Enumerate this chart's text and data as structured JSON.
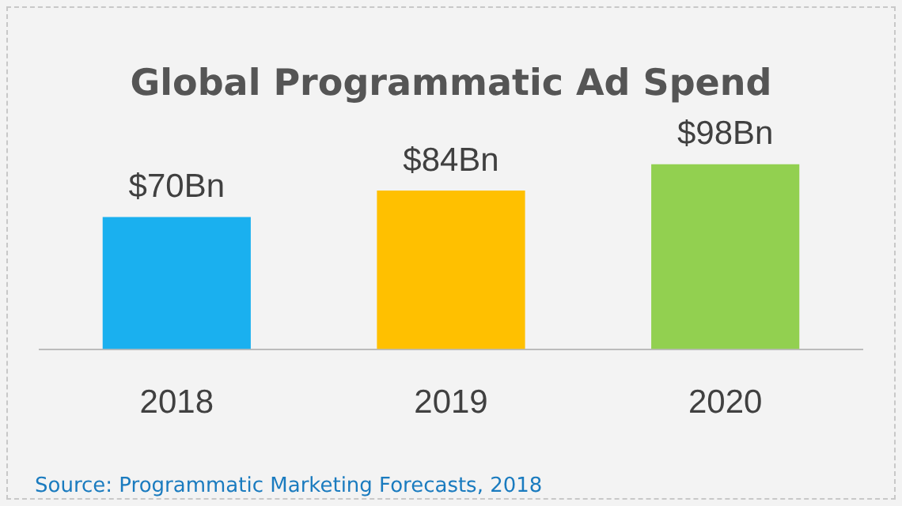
{
  "chart_data": {
    "type": "bar",
    "title": "Global Programmatic Ad Spend",
    "categories": [
      "2018",
      "2019",
      "2020"
    ],
    "values": [
      70,
      84,
      98
    ],
    "colors": [
      "#1ab0ef",
      "#ffc000",
      "#92d050"
    ],
    "value_labels": [
      "$70Bn",
      "$84Bn",
      "$98Bn"
    ],
    "annotations": [
      "Source: Programmatic Marketing Forecasts, 2018"
    ],
    "tick_labels": "x",
    "grid": false,
    "legend": false
  }
}
